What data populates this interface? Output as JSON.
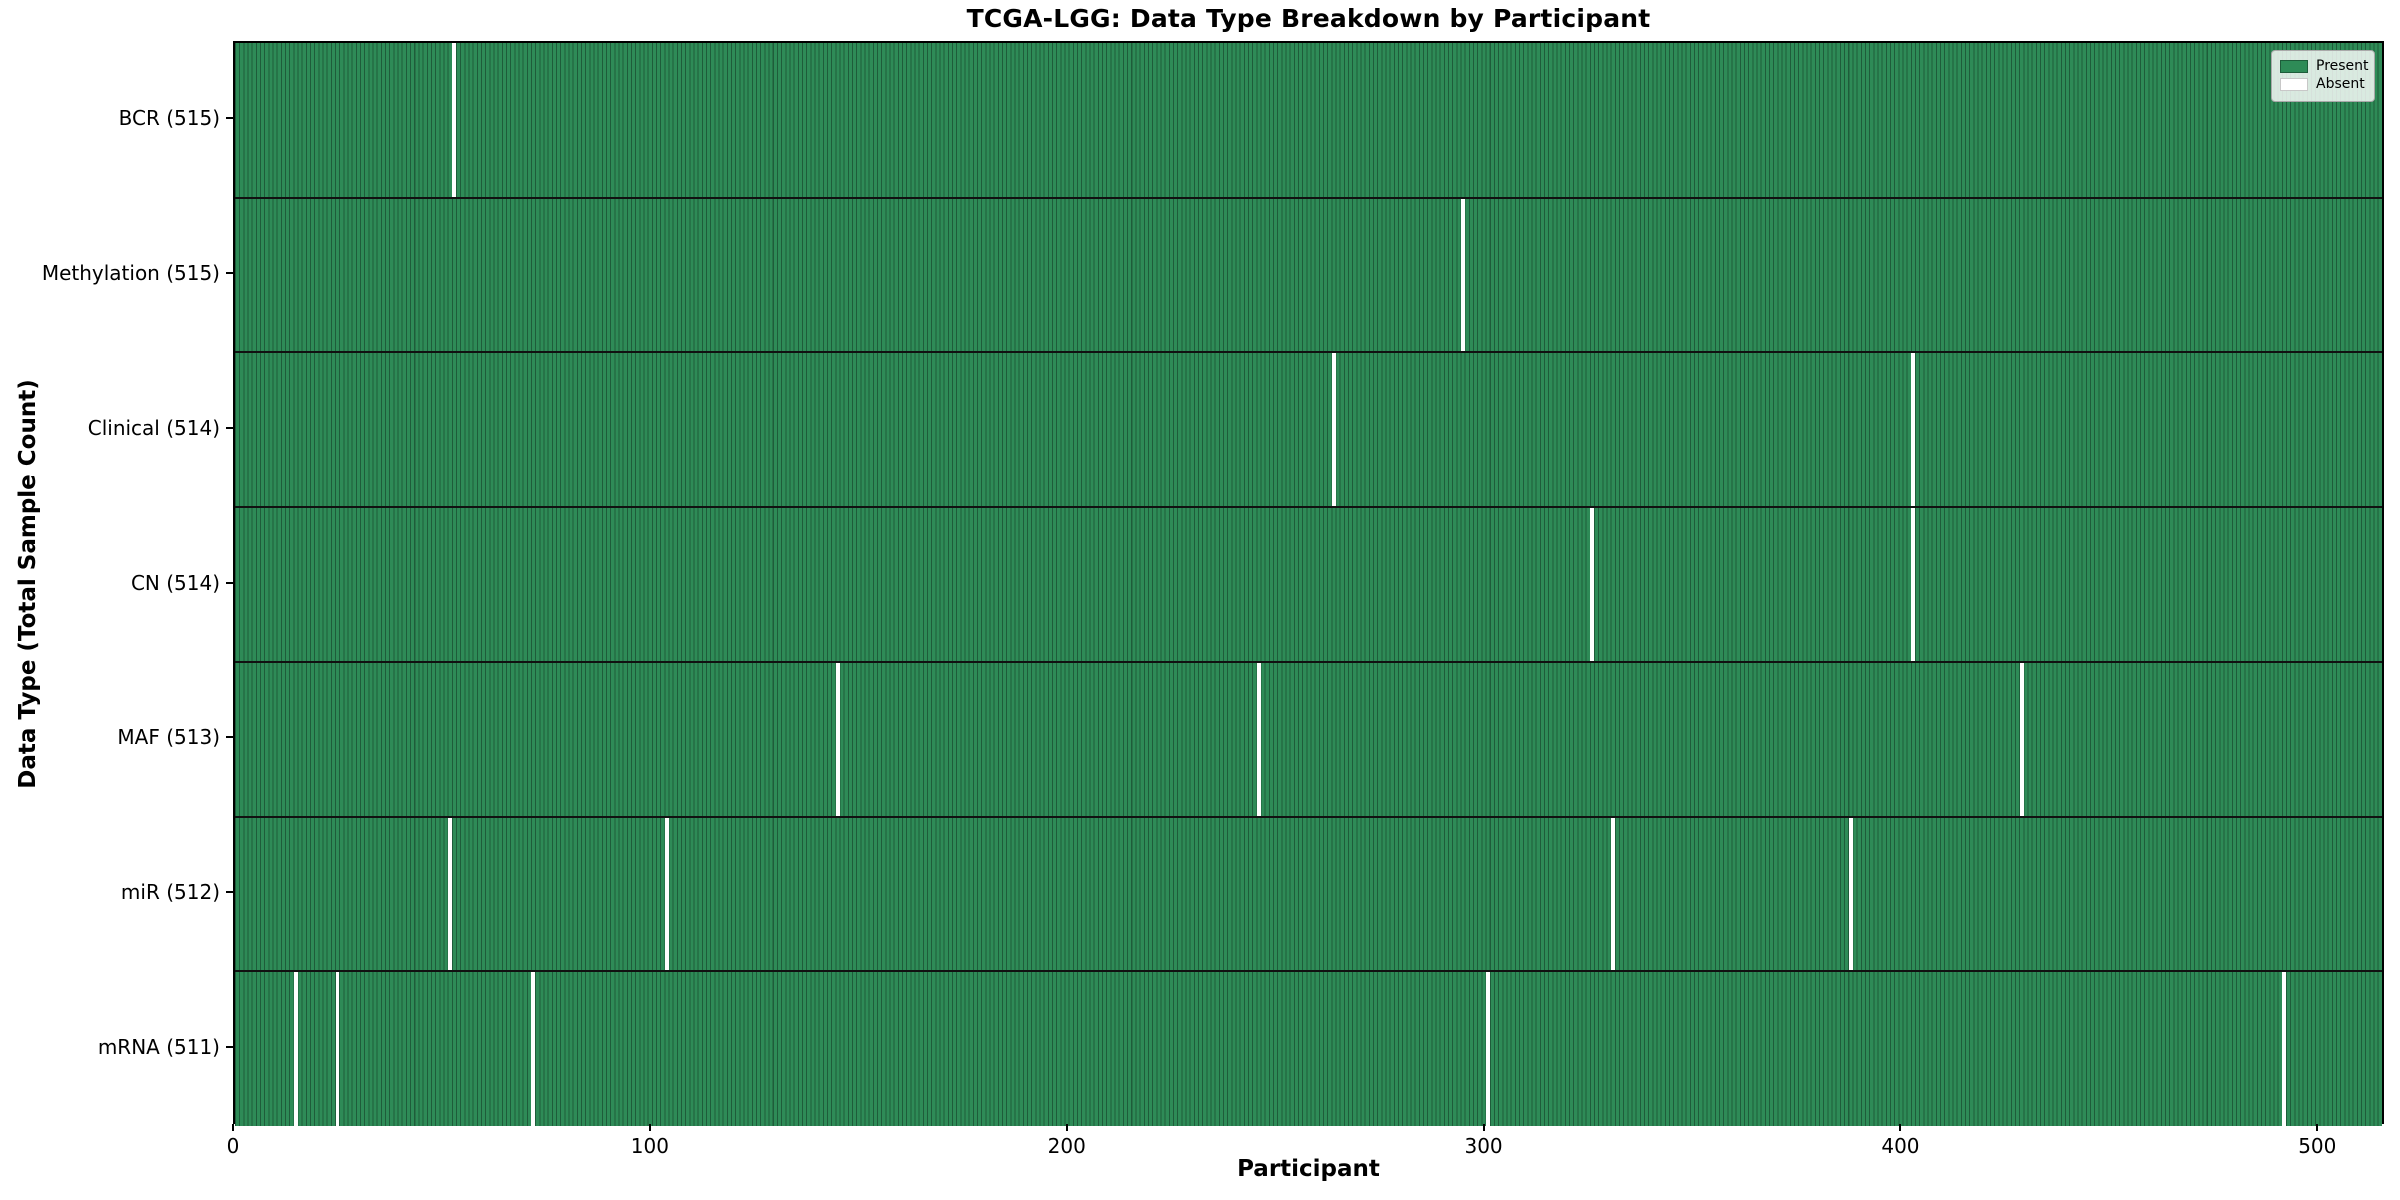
{
  "chart_data": {
    "type": "heatmap",
    "title": "TCGA-LGG: Data Type Breakdown by Participant",
    "xlabel": "Participant",
    "ylabel": "Data Type (Total Sample Count)",
    "n_participants": 516,
    "xlim": [
      0,
      516
    ],
    "x_ticks": [
      0,
      100,
      200,
      300,
      400,
      500
    ],
    "grid": false,
    "legend_position": "upper-right",
    "legend": [
      {
        "label": "Present",
        "color": "#2E8B57"
      },
      {
        "label": "Absent",
        "color": "#FFFFFF"
      }
    ],
    "rows": [
      {
        "label": "BCR (515)",
        "total": 515,
        "absent_participants": [
          52
        ]
      },
      {
        "label": "Methylation (515)",
        "total": 515,
        "absent_participants": [
          294
        ]
      },
      {
        "label": "Clinical (514)",
        "total": 514,
        "absent_participants": [
          263,
          402
        ]
      },
      {
        "label": "CN (514)",
        "total": 514,
        "absent_participants": [
          325,
          402
        ]
      },
      {
        "label": "MAF (513)",
        "total": 513,
        "absent_participants": [
          144,
          245,
          428
        ]
      },
      {
        "label": "miR (512)",
        "total": 512,
        "absent_participants": [
          51,
          103,
          330,
          387
        ]
      },
      {
        "label": "mRNA (511)",
        "total": 511,
        "absent_participants": [
          14,
          24,
          71,
          300,
          491
        ]
      }
    ],
    "colors": {
      "present": "#2E8B57",
      "present_cell_edge": "#1E5C3A",
      "absent": "#FFFFFF",
      "row_divider": "#111111",
      "plot_border": "#000000",
      "text": "#000000"
    }
  }
}
